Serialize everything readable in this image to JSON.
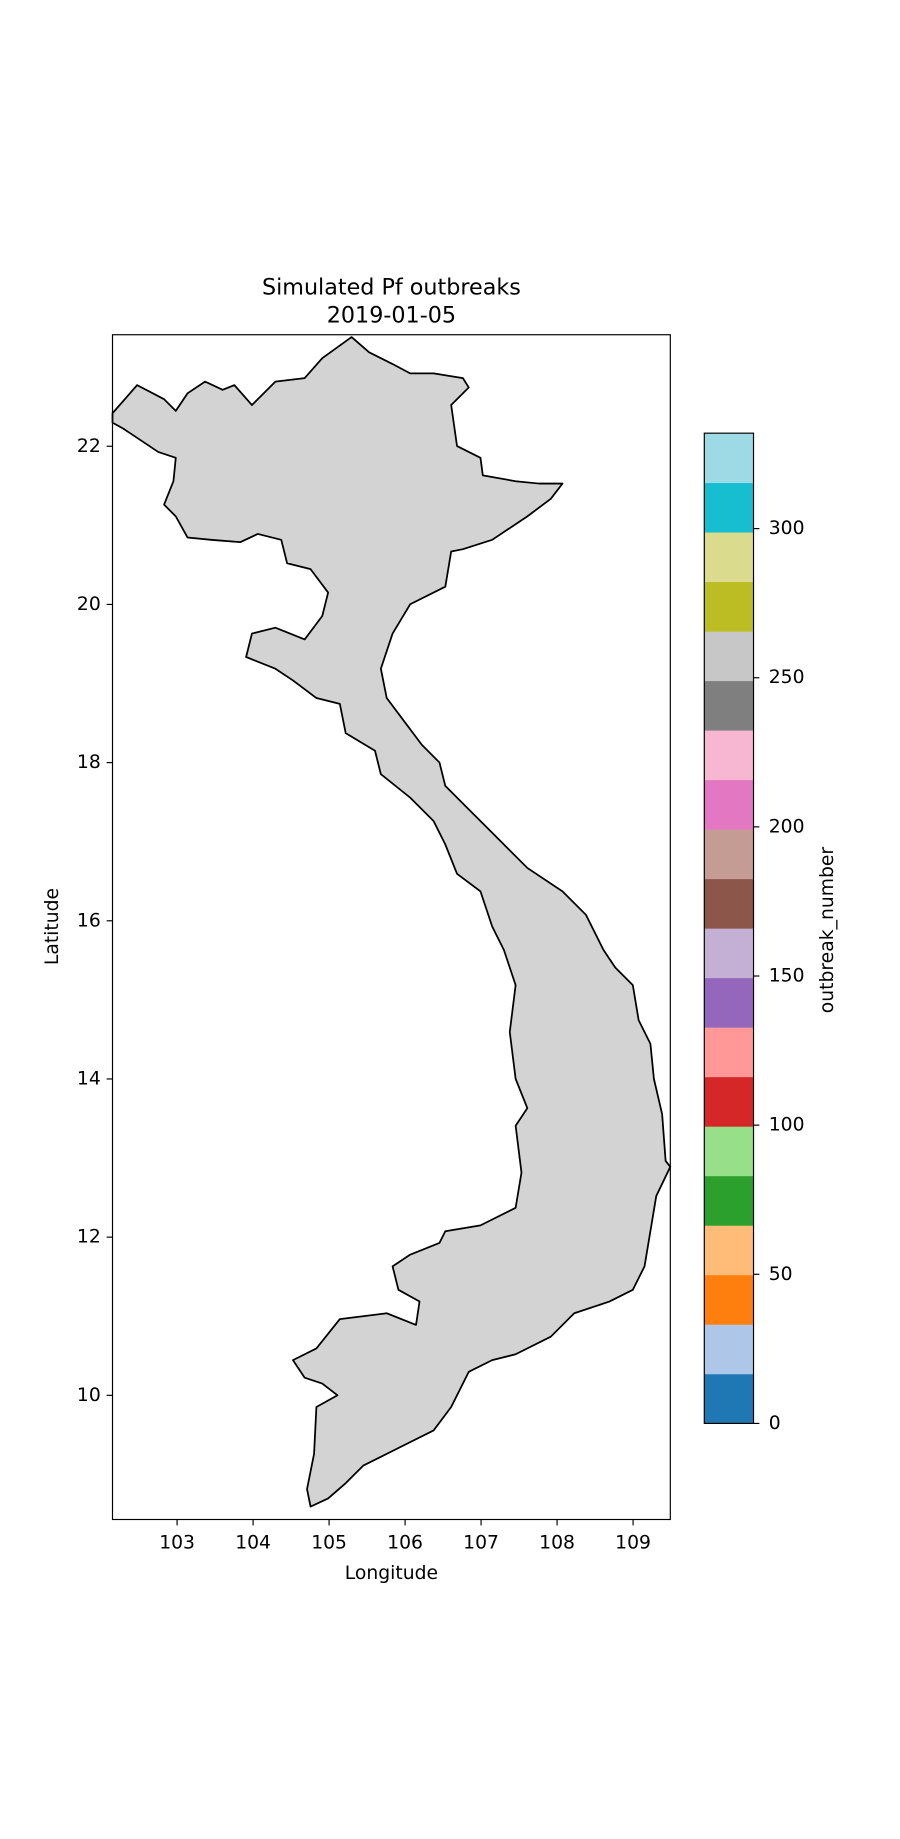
{
  "chart_data": {
    "type": "map",
    "title": "Simulated Pf outbreaks",
    "subtitle": "2019-01-05",
    "x_label": "Longitude",
    "y_label": "Latitude",
    "xlim": [
      102.15,
      109.49
    ],
    "ylim": [
      8.43,
      23.41
    ],
    "xticks": [
      103,
      104,
      105,
      106,
      107,
      108,
      109
    ],
    "yticks": [
      10,
      12,
      14,
      16,
      18,
      20,
      22
    ],
    "land_color": "#d3d3d3",
    "colorbar": {
      "label": "outbreak_number",
      "clim": [
        0,
        332
      ],
      "ticks": [
        0,
        50,
        100,
        150,
        200,
        250,
        300
      ],
      "colors": [
        "#1f77b4",
        "#aec7e8",
        "#ff7f0e",
        "#ffbb78",
        "#2ca02c",
        "#98df8a",
        "#d62728",
        "#ff9896",
        "#9467bd",
        "#c5b0d5",
        "#8c564b",
        "#c49c94",
        "#e377c2",
        "#f7b6d2",
        "#7f7f7f",
        "#c7c7c7",
        "#bcbd22",
        "#dbdb8d",
        "#17becf",
        "#9edae5"
      ]
    }
  }
}
